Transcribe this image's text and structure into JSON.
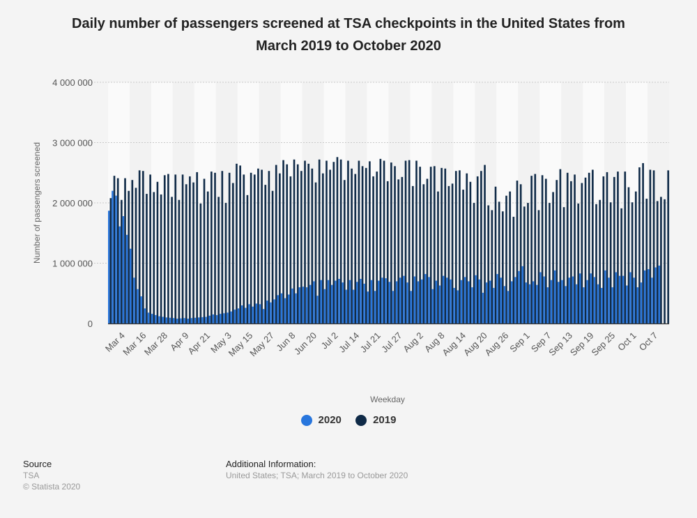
{
  "title": "Daily number of passengers screened at TSA checkpoints in the United States from March 2019 to October 2020",
  "title_lines": [
    "Daily number of passengers screened at TSA checkpoints in the United States from",
    "March 2019 to October 2020"
  ],
  "legend": [
    {
      "label": "2020",
      "color": "#2876dd"
    },
    {
      "label": "2019",
      "color": "#0f2a47"
    }
  ],
  "footer": {
    "source_heading": "Source",
    "source_lines": [
      "TSA",
      "© Statista 2020"
    ],
    "info_heading": "Additional Information:",
    "info_text": "United States; TSA; March 2019 to October 2020"
  },
  "chart_data": {
    "type": "bar",
    "title": "Daily number of passengers screened at TSA checkpoints in the United States from March 2019 to October 2020",
    "xlabel": "Weekday",
    "ylabel": "Number of passengers screened",
    "ylim": [
      0,
      4000000
    ],
    "yticks": [
      0,
      1000000,
      2000000,
      3000000,
      4000000
    ],
    "ytick_labels": [
      "0",
      "1 000 000",
      "2 000 000",
      "3 000 000",
      "4 000 000"
    ],
    "grid": true,
    "legend_position": "bottom",
    "xtick_labels": [
      "Mar 4",
      "Mar 16",
      "Mar 28",
      "Apr 9",
      "Apr 21",
      "May 3",
      "May 15",
      "May 27",
      "Jun 8",
      "Jun 20",
      "Jul 2",
      "Jul 14",
      "Jul 21",
      "Jul 27",
      "Aug 2",
      "Aug 8",
      "Aug 14",
      "Aug 20",
      "Aug 26",
      "Sep 1",
      "Sep 7",
      "Sep 13",
      "Sep 19",
      "Sep 25",
      "Oct 1",
      "Oct 7"
    ],
    "series": [
      {
        "name": "2020",
        "color": "#2876dd",
        "values": [
          1870000,
          2200000,
          2120000,
          1610000,
          1780000,
          1470000,
          1240000,
          760000,
          570000,
          450000,
          250000,
          180000,
          160000,
          140000,
          120000,
          110000,
          100000,
          95000,
          90000,
          80000,
          85000,
          90000,
          80000,
          90000,
          95000,
          100000,
          105000,
          110000,
          130000,
          150000,
          140000,
          160000,
          170000,
          180000,
          200000,
          230000,
          250000,
          300000,
          260000,
          320000,
          280000,
          330000,
          320000,
          240000,
          380000,
          350000,
          400000,
          470000,
          500000,
          420000,
          480000,
          580000,
          500000,
          600000,
          610000,
          600000,
          640000,
          700000,
          460000,
          720000,
          570000,
          720000,
          640000,
          710000,
          740000,
          680000,
          560000,
          720000,
          560000,
          690000,
          740000,
          660000,
          530000,
          720000,
          540000,
          710000,
          760000,
          750000,
          690000,
          540000,
          700000,
          760000,
          790000,
          680000,
          540000,
          780000,
          700000,
          730000,
          820000,
          770000,
          570000,
          710000,
          630000,
          790000,
          760000,
          730000,
          590000,
          550000,
          720000,
          770000,
          700000,
          600000,
          800000,
          730000,
          510000,
          680000,
          710000,
          590000,
          820000,
          760000,
          620000,
          540000,
          700000,
          770000,
          870000,
          950000,
          680000,
          650000,
          700000,
          640000,
          850000,
          780000,
          600000,
          720000,
          880000,
          690000,
          720000,
          620000,
          760000,
          780000,
          650000,
          830000,
          600000,
          720000,
          830000,
          770000,
          650000,
          590000,
          880000,
          760000,
          600000,
          850000,
          790000,
          790000,
          630000,
          850000,
          760000,
          600000,
          680000,
          880000,
          900000,
          760000,
          930000,
          960000
        ],
        "label": "2020"
      },
      {
        "name": "2019",
        "color": "#0f2a47",
        "values": [
          2080000,
          2450000,
          2410000,
          2050000,
          2410000,
          2200000,
          2380000,
          2250000,
          2540000,
          2530000,
          2150000,
          2470000,
          2180000,
          2350000,
          2140000,
          2460000,
          2480000,
          2100000,
          2470000,
          2050000,
          2470000,
          2310000,
          2440000,
          2340000,
          2510000,
          1990000,
          2400000,
          2190000,
          2520000,
          2500000,
          2100000,
          2530000,
          2000000,
          2500000,
          2330000,
          2650000,
          2620000,
          2470000,
          2130000,
          2500000,
          2470000,
          2570000,
          2550000,
          2300000,
          2530000,
          2200000,
          2630000,
          2490000,
          2710000,
          2640000,
          2440000,
          2720000,
          2640000,
          2530000,
          2700000,
          2650000,
          2570000,
          2340000,
          2720000,
          2490000,
          2700000,
          2550000,
          2680000,
          2760000,
          2720000,
          2380000,
          2700000,
          2570000,
          2480000,
          2700000,
          2610000,
          2580000,
          2690000,
          2440000,
          2520000,
          2730000,
          2700000,
          2360000,
          2670000,
          2610000,
          2390000,
          2430000,
          2700000,
          2710000,
          2280000,
          2700000,
          2600000,
          2310000,
          2400000,
          2600000,
          2610000,
          2190000,
          2580000,
          2570000,
          2280000,
          2320000,
          2530000,
          2540000,
          2220000,
          2490000,
          2350000,
          2000000,
          2440000,
          2530000,
          2630000,
          1960000,
          1880000,
          2270000,
          2020000,
          1860000,
          2120000,
          2190000,
          1770000,
          2370000,
          2310000,
          1940000,
          2000000,
          2450000,
          2480000,
          1880000,
          2460000,
          2400000,
          2000000,
          2180000,
          2380000,
          2560000,
          1930000,
          2500000,
          2360000,
          2470000,
          1990000,
          2330000,
          2420000,
          2500000,
          2550000,
          1980000,
          2050000,
          2440000,
          2510000,
          2010000,
          2430000,
          2520000,
          1910000,
          2520000,
          2260000,
          2010000,
          2190000,
          2590000,
          2660000,
          2070000,
          2550000,
          2540000,
          2030000,
          2100000,
          2060000,
          2540000
        ],
        "label": "2019"
      }
    ]
  }
}
